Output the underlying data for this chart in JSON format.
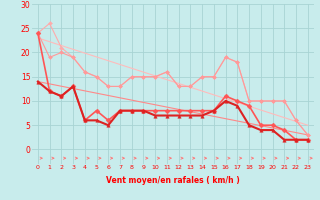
{
  "background_color": "#c8ecec",
  "grid_color": "#a8d4d4",
  "x_label": "Vent moyen/en rafales ( km/h )",
  "x_ticks": [
    0,
    1,
    2,
    3,
    4,
    5,
    6,
    7,
    8,
    9,
    10,
    11,
    12,
    13,
    14,
    15,
    16,
    17,
    18,
    19,
    20,
    21,
    22,
    23
  ],
  "y_ticks": [
    0,
    5,
    10,
    15,
    20,
    25,
    30
  ],
  "ylim": [
    -3,
    30
  ],
  "xlim": [
    -0.5,
    23.5
  ],
  "line_light1": {
    "x": [
      0,
      1,
      2,
      3,
      4,
      5,
      6,
      7,
      8,
      9,
      10,
      11,
      12,
      13,
      14,
      15,
      16,
      17,
      18,
      19,
      20,
      21,
      22,
      23
    ],
    "y": [
      24,
      26,
      21,
      19,
      16,
      15,
      13,
      13,
      15,
      15,
      15,
      16,
      13,
      13,
      15,
      15,
      19,
      18,
      10,
      10,
      10,
      10,
      6,
      3
    ],
    "color": "#ffaaaa",
    "linewidth": 0.8,
    "marker": "D",
    "markersize": 2.0
  },
  "line_light2": {
    "x": [
      0,
      1,
      2,
      3,
      4,
      5,
      6,
      7,
      8,
      9,
      10,
      11,
      12,
      13,
      14,
      15,
      16,
      17,
      18,
      19,
      20,
      21,
      22,
      23
    ],
    "y": [
      24,
      19,
      20,
      19,
      16,
      15,
      13,
      13,
      15,
      15,
      15,
      16,
      13,
      13,
      15,
      15,
      19,
      18,
      10,
      10,
      10,
      10,
      6,
      3
    ],
    "color": "#ff9999",
    "linewidth": 0.8,
    "marker": "D",
    "markersize": 2.0
  },
  "line_trend1": {
    "x": [
      0,
      23
    ],
    "y": [
      23,
      5
    ],
    "color": "#ffbbbb",
    "linewidth": 0.8,
    "marker": null,
    "markersize": 0
  },
  "line_trend2": {
    "x": [
      0,
      23
    ],
    "y": [
      14,
      3
    ],
    "color": "#ff8888",
    "linewidth": 0.8,
    "marker": null,
    "markersize": 0
  },
  "line_mid1": {
    "x": [
      0,
      1,
      2,
      3,
      4,
      5,
      6,
      7,
      8,
      9,
      10,
      11,
      12,
      13,
      14,
      15,
      16,
      17,
      18,
      19,
      20,
      21,
      22,
      23
    ],
    "y": [
      24,
      12,
      11,
      13,
      6,
      8,
      6,
      8,
      8,
      8,
      8,
      8,
      8,
      8,
      8,
      8,
      11,
      10,
      9,
      5,
      5,
      4,
      2,
      2
    ],
    "color": "#ff5555",
    "linewidth": 1.2,
    "marker": "D",
    "markersize": 2.5
  },
  "line_dark1": {
    "x": [
      0,
      1,
      2,
      3,
      4,
      5,
      6,
      7,
      8,
      9,
      10,
      11,
      12,
      13,
      14,
      15,
      16,
      17,
      18,
      19,
      20,
      21,
      22,
      23
    ],
    "y": [
      14,
      12,
      11,
      13,
      6,
      6,
      5,
      8,
      8,
      8,
      7,
      7,
      7,
      7,
      7,
      8,
      10,
      9,
      5,
      4,
      4,
      2,
      2,
      2
    ],
    "color": "#dd2222",
    "linewidth": 1.5,
    "marker": "^",
    "markersize": 2.5
  }
}
